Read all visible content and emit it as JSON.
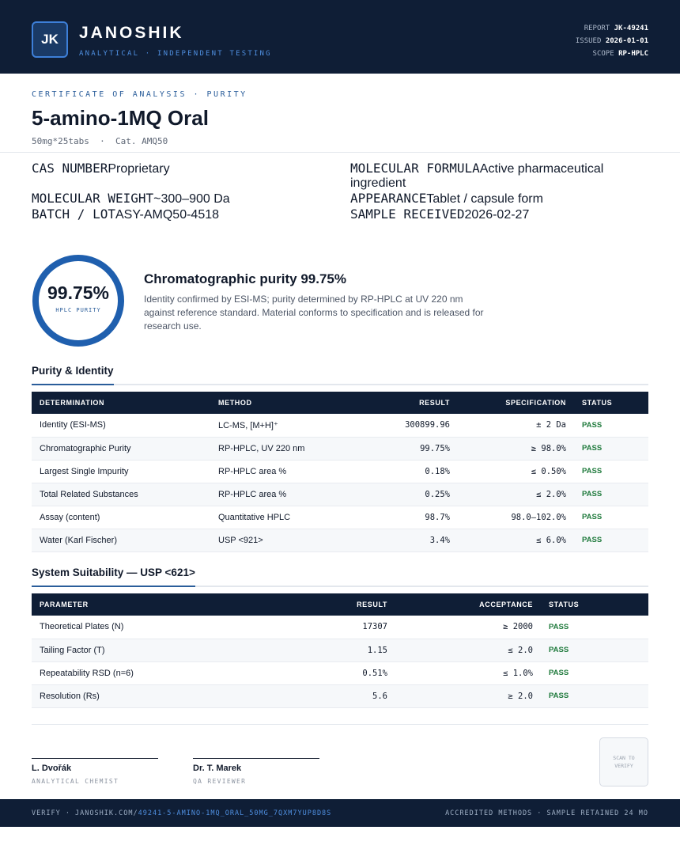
{
  "header": {
    "logo": "JK",
    "brand": "JANOSHIK",
    "tagline": "ANALYTICAL · INDEPENDENT TESTING",
    "meta": [
      {
        "label": "REPORT",
        "value": "JK-49241"
      },
      {
        "label": "ISSUED",
        "value": "2026-01-01"
      },
      {
        "label": "SCOPE",
        "value": "RP-HPLC"
      }
    ]
  },
  "document": {
    "kicker": "CERTIFICATE OF ANALYSIS · PURITY",
    "title": "5-amino-1MQ Oral",
    "subtitle": "50mg*25tabs  ·  Cat. AMQ50"
  },
  "fields": [
    {
      "label": "CAS NUMBER",
      "value": "Proprietary"
    },
    {
      "label": "MOLECULAR FORMULA",
      "value": "Active pharmaceutical ingredient"
    },
    {
      "label": "MOLECULAR WEIGHT",
      "value": "~300–900 Da"
    },
    {
      "label": "APPEARANCE",
      "value": "Tablet / capsule form"
    },
    {
      "label": "BATCH / LOT",
      "value": "ASY-AMQ50-4518"
    },
    {
      "label": "SAMPLE RECEIVED",
      "value": "2026-02-27"
    }
  ],
  "summary": {
    "gauge_value": "99.75%",
    "gauge_label": "HPLC PURITY",
    "heading": "Chromatographic purity 99.75%",
    "text": "Identity confirmed by ESI-MS; purity determined by RP-HPLC at UV 220 nm against reference standard. Material conforms to specification and is released for research use."
  },
  "purity": {
    "title": "Purity & Identity",
    "columns": [
      "DETERMINATION",
      "METHOD",
      "RESULT",
      "SPECIFICATION",
      "STATUS"
    ],
    "rows": [
      [
        "Identity (ESI-MS)",
        "LC-MS, [M+H]⁺",
        "300899.96",
        "± 2 Da",
        "PASS"
      ],
      [
        "Chromatographic Purity",
        "RP-HPLC, UV 220 nm",
        "99.75%",
        "≥ 98.0%",
        "PASS"
      ],
      [
        "Largest Single Impurity",
        "RP-HPLC area %",
        "0.18%",
        "≤ 0.50%",
        "PASS"
      ],
      [
        "Total Related Substances",
        "RP-HPLC area %",
        "0.25%",
        "≤ 2.0%",
        "PASS"
      ],
      [
        "Assay (content)",
        "Quantitative HPLC",
        "98.7%",
        "98.0–102.0%",
        "PASS"
      ],
      [
        "Water (Karl Fischer)",
        "USP <921>",
        "3.4%",
        "≤ 6.0%",
        "PASS"
      ]
    ]
  },
  "suitability": {
    "title": "System Suitability — USP <621>",
    "columns": [
      "PARAMETER",
      "RESULT",
      "ACCEPTANCE",
      "STATUS"
    ],
    "rows": [
      [
        "Theoretical Plates (N)",
        "17307",
        "≥ 2000",
        "PASS"
      ],
      [
        "Tailing Factor (T)",
        "1.15",
        "≤ 2.0",
        "PASS"
      ],
      [
        "Repeatability RSD (n=6)",
        "0.51%",
        "≤ 1.0%",
        "PASS"
      ],
      [
        "Resolution (Rs)",
        "5.6",
        "≥ 2.0",
        "PASS"
      ]
    ]
  },
  "signatures": [
    {
      "name": "L. Dvořák",
      "role": "ANALYTICAL CHEMIST"
    },
    {
      "name": "Dr. T. Marek",
      "role": "QA REVIEWER"
    }
  ],
  "qr": "SCAN TO VERIFY",
  "footer": {
    "verify": "VERIFY · JANOSHIK.COM/",
    "link": "49241-5-AMINO-1MQ_ORAL_50MG_7QXM7YUP8D8S",
    "right": "ACCREDITED METHODS · SAMPLE RETAINED 24 MO"
  }
}
